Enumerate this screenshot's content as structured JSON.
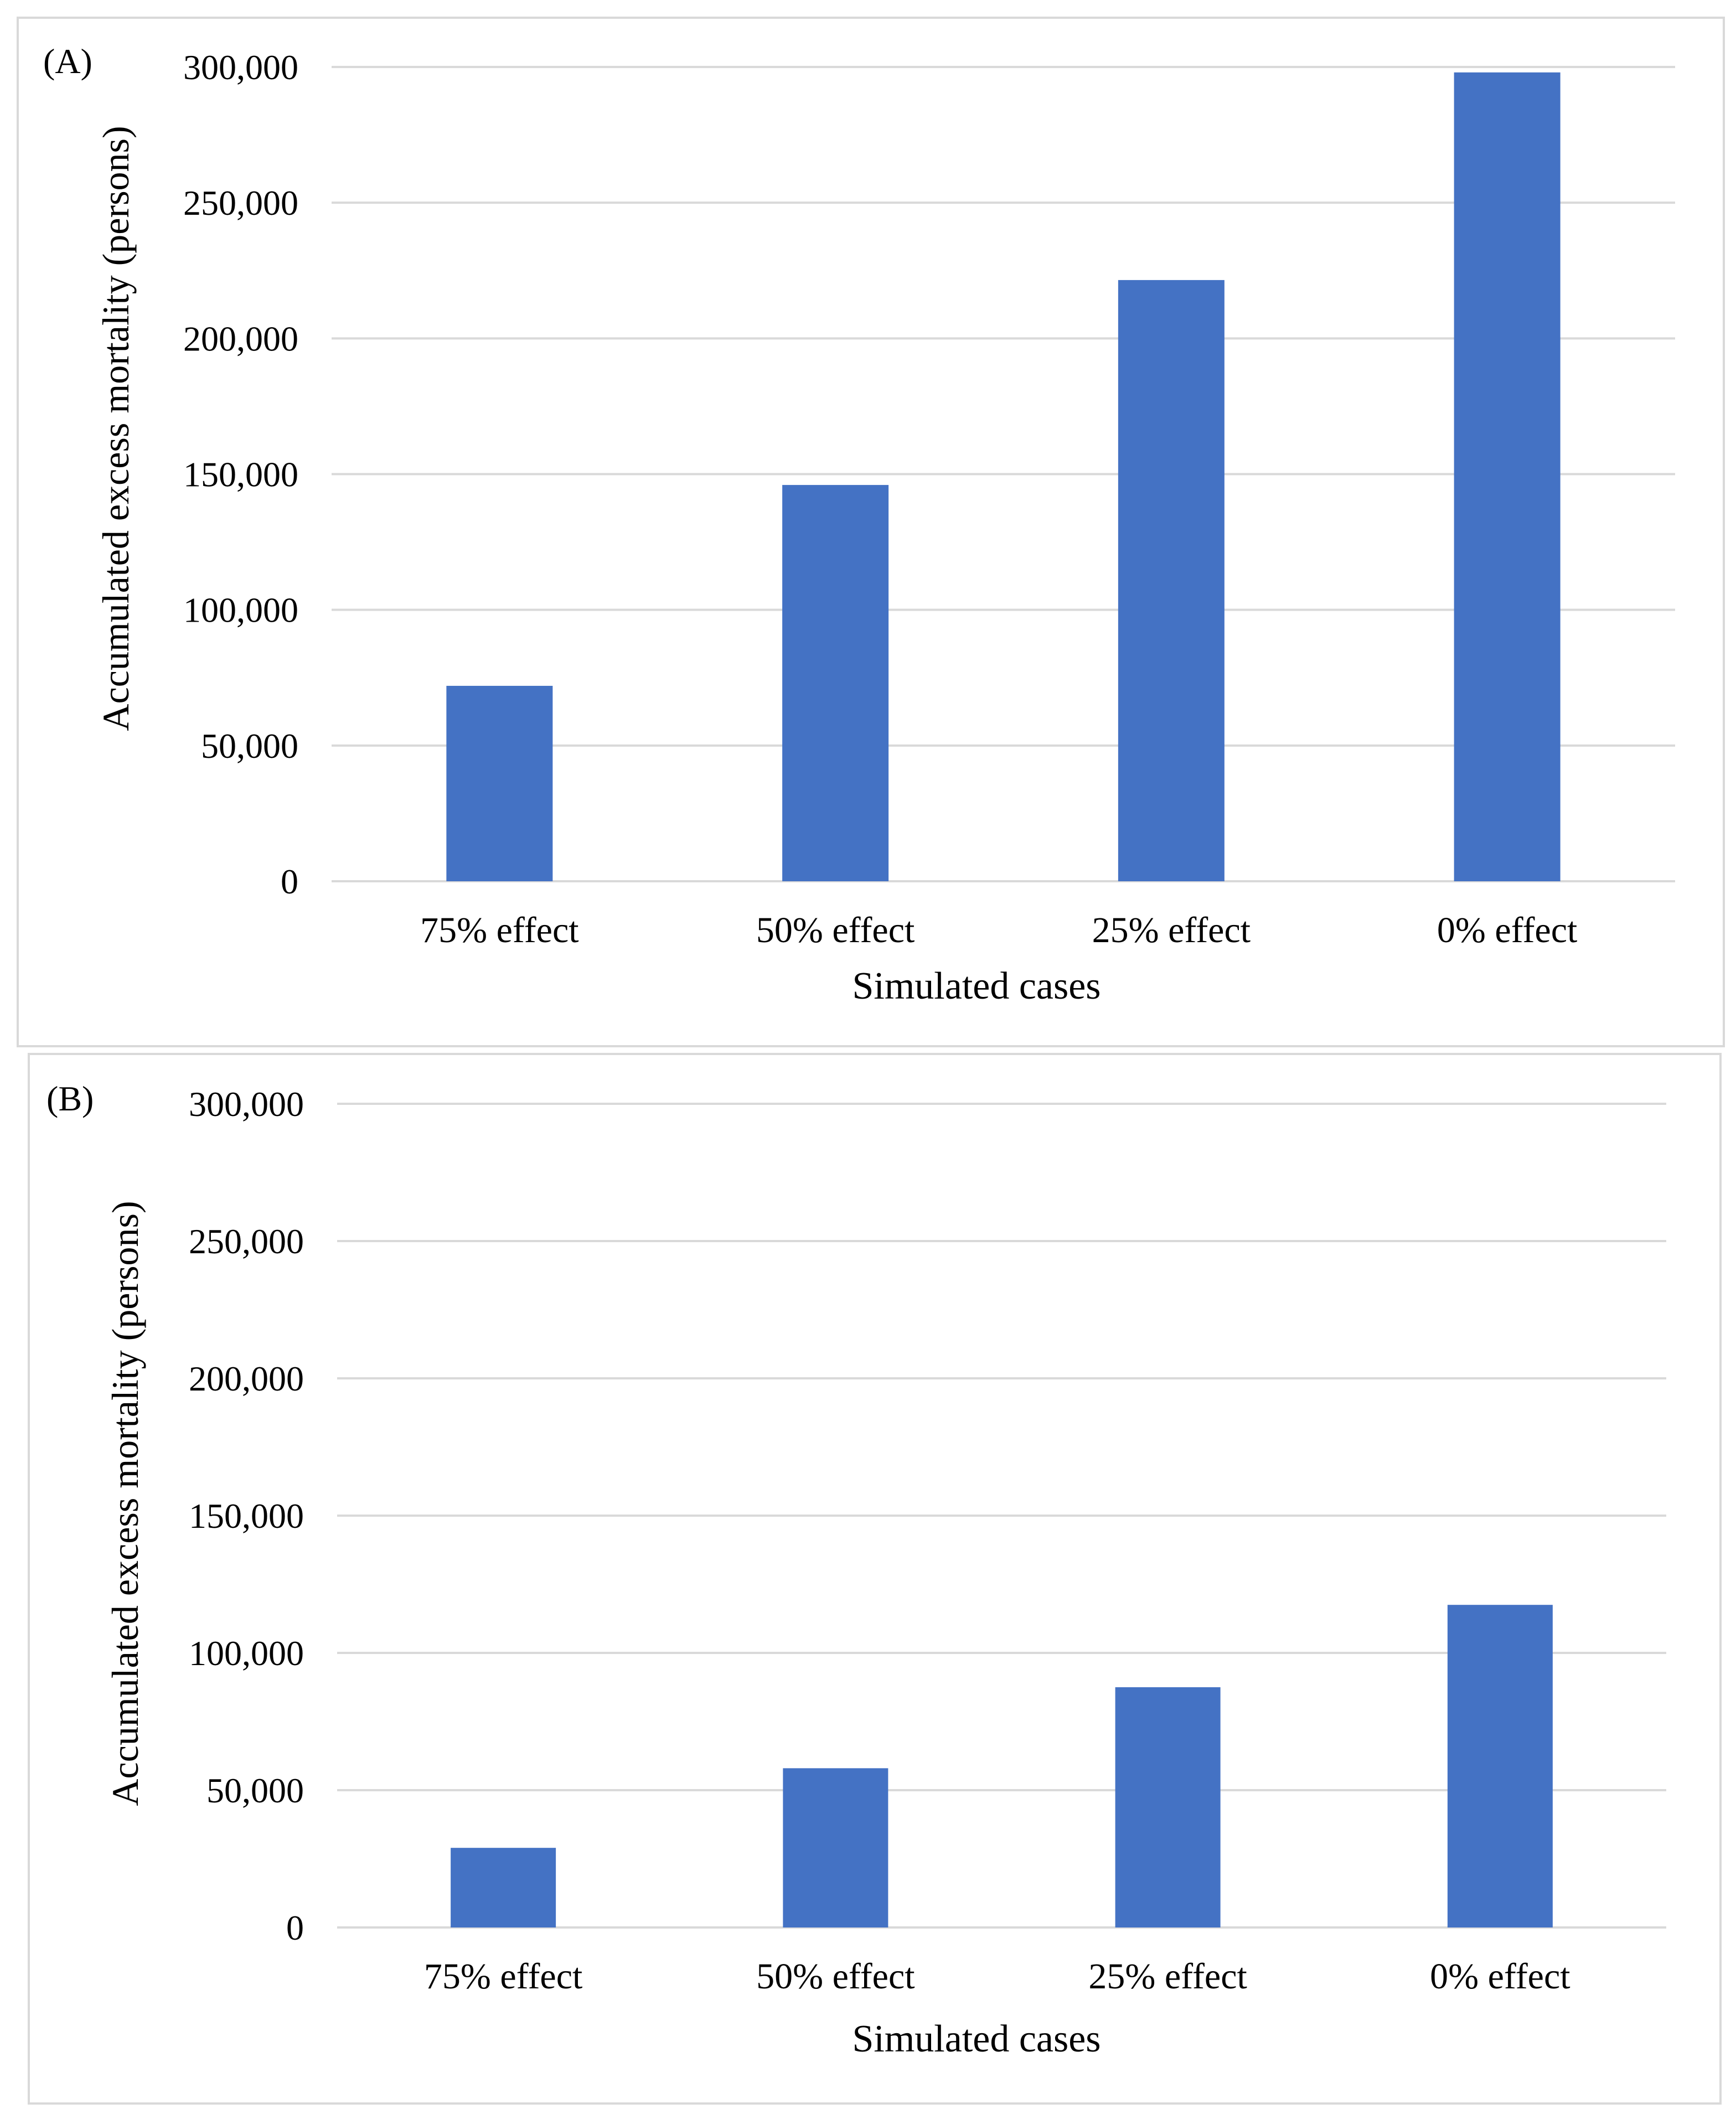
{
  "chart_data": [
    {
      "type": "bar",
      "panel_label": "(A)",
      "categories": [
        "75% effect",
        "50% effect",
        "25% effect",
        "0% effect"
      ],
      "values": [
        72000,
        146000,
        221500,
        298000
      ],
      "ylim": [
        0,
        300000
      ],
      "yticks": [
        0,
        50000,
        100000,
        150000,
        200000,
        250000,
        300000
      ],
      "ytick_labels": [
        "0",
        "50,000",
        "100,000",
        "150,000",
        "200,000",
        "250,000",
        "300,000"
      ],
      "xlabel": "Simulated cases",
      "ylabel": "Accumulated excess mortality (persons)",
      "grid": true,
      "bar_color": "#4472C4"
    },
    {
      "type": "bar",
      "panel_label": "(B)",
      "categories": [
        "75% effect",
        "50% effect",
        "25% effect",
        "0% effect"
      ],
      "values": [
        29000,
        58000,
        87500,
        117500
      ],
      "ylim": [
        0,
        300000
      ],
      "yticks": [
        0,
        50000,
        100000,
        150000,
        200000,
        250000,
        300000
      ],
      "ytick_labels": [
        "0",
        "50,000",
        "100,000",
        "150,000",
        "200,000",
        "250,000",
        "300,000"
      ],
      "xlabel": "Simulated cases",
      "ylabel": "Accumulated excess mortality (persons)",
      "grid": true,
      "bar_color": "#4472C4"
    }
  ]
}
